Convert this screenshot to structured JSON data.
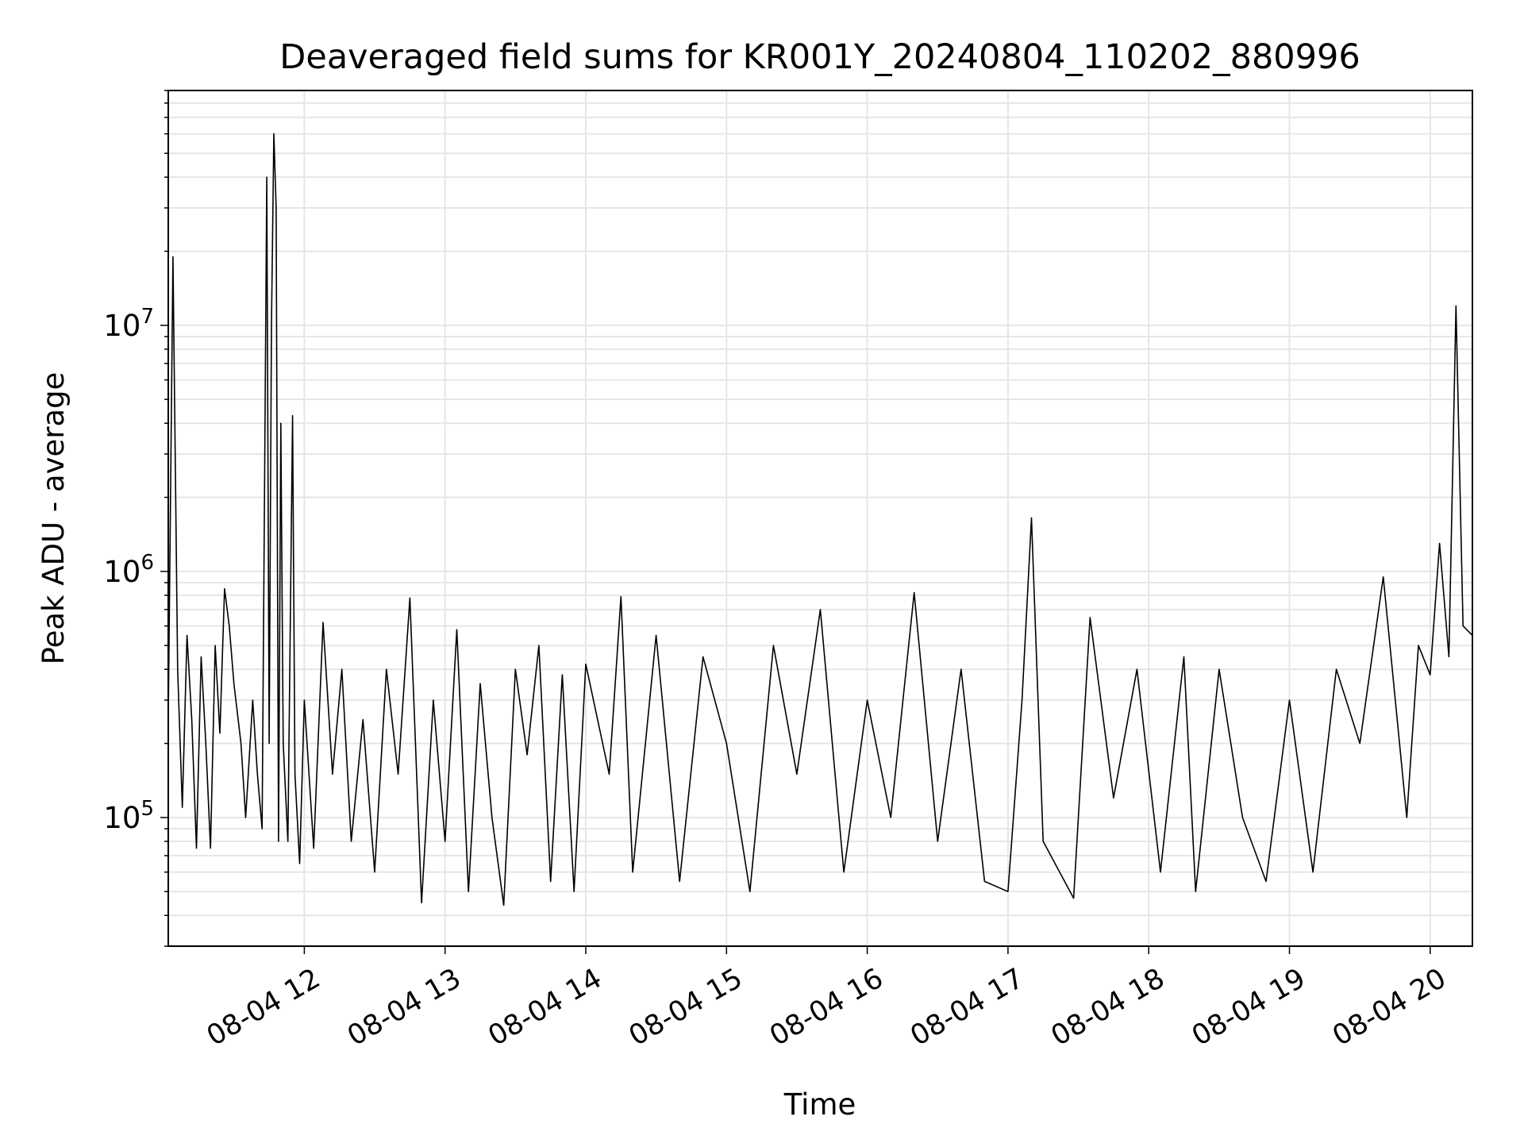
{
  "chart_data": {
    "type": "line",
    "title": "Deaveraged field sums for KR001Y_20240804_110202_880996",
    "xlabel": "Time",
    "ylabel": "Peak ADU - average",
    "y_scale": "log",
    "grid": true,
    "line_color": "#000000",
    "grid_color": "#e6e6e6",
    "xlim": [
      "2024-08-04 11:02",
      "2024-08-04 20:18"
    ],
    "ylim": [
      30000,
      90000000
    ],
    "x_ticks": [
      {
        "label": "08-04 12",
        "time": "2024-08-04 12:00"
      },
      {
        "label": "08-04 13",
        "time": "2024-08-04 13:00"
      },
      {
        "label": "08-04 14",
        "time": "2024-08-04 14:00"
      },
      {
        "label": "08-04 15",
        "time": "2024-08-04 15:00"
      },
      {
        "label": "08-04 16",
        "time": "2024-08-04 16:00"
      },
      {
        "label": "08-04 17",
        "time": "2024-08-04 17:00"
      },
      {
        "label": "08-04 18",
        "time": "2024-08-04 18:00"
      },
      {
        "label": "08-04 19",
        "time": "2024-08-04 19:00"
      },
      {
        "label": "08-04 20",
        "time": "2024-08-04 20:00"
      }
    ],
    "y_ticks": [
      {
        "base": "10",
        "exp": "5",
        "value": 100000
      },
      {
        "base": "10",
        "exp": "6",
        "value": 1000000
      },
      {
        "base": "10",
        "exp": "7",
        "value": 10000000
      }
    ],
    "series": [
      {
        "points": [
          [
            "2024-08-04 11:02",
            250000
          ],
          [
            "2024-08-04 11:04",
            19000000
          ],
          [
            "2024-08-04 11:06",
            400000
          ],
          [
            "2024-08-04 11:08",
            110000
          ],
          [
            "2024-08-04 11:10",
            550000
          ],
          [
            "2024-08-04 11:12",
            250000
          ],
          [
            "2024-08-04 11:14",
            75000
          ],
          [
            "2024-08-04 11:16",
            450000
          ],
          [
            "2024-08-04 11:18",
            200000
          ],
          [
            "2024-08-04 11:20",
            75000
          ],
          [
            "2024-08-04 11:22",
            500000
          ],
          [
            "2024-08-04 11:24",
            220000
          ],
          [
            "2024-08-04 11:26",
            850000
          ],
          [
            "2024-08-04 11:28",
            600000
          ],
          [
            "2024-08-04 11:30",
            350000
          ],
          [
            "2024-08-04 11:33",
            200000
          ],
          [
            "2024-08-04 11:35",
            100000
          ],
          [
            "2024-08-04 11:38",
            300000
          ],
          [
            "2024-08-04 11:40",
            150000
          ],
          [
            "2024-08-04 11:42",
            90000
          ],
          [
            "2024-08-04 11:44",
            40000000
          ],
          [
            "2024-08-04 11:45",
            200000
          ],
          [
            "2024-08-04 11:46",
            10000000
          ],
          [
            "2024-08-04 11:47",
            60000000
          ],
          [
            "2024-08-04 11:48",
            30000000
          ],
          [
            "2024-08-04 11:49",
            80000
          ],
          [
            "2024-08-04 11:50",
            4000000
          ],
          [
            "2024-08-04 11:51",
            200000
          ],
          [
            "2024-08-04 11:53",
            80000
          ],
          [
            "2024-08-04 11:55",
            4300000
          ],
          [
            "2024-08-04 11:56",
            150000
          ],
          [
            "2024-08-04 11:58",
            65000
          ],
          [
            "2024-08-04 12:00",
            300000
          ],
          [
            "2024-08-04 12:04",
            75000
          ],
          [
            "2024-08-04 12:08",
            620000
          ],
          [
            "2024-08-04 12:12",
            150000
          ],
          [
            "2024-08-04 12:16",
            400000
          ],
          [
            "2024-08-04 12:20",
            80000
          ],
          [
            "2024-08-04 12:25",
            250000
          ],
          [
            "2024-08-04 12:30",
            60000
          ],
          [
            "2024-08-04 12:35",
            400000
          ],
          [
            "2024-08-04 12:40",
            150000
          ],
          [
            "2024-08-04 12:45",
            780000
          ],
          [
            "2024-08-04 12:50",
            45000
          ],
          [
            "2024-08-04 12:55",
            300000
          ],
          [
            "2024-08-04 13:00",
            80000
          ],
          [
            "2024-08-04 13:05",
            580000
          ],
          [
            "2024-08-04 13:10",
            50000
          ],
          [
            "2024-08-04 13:15",
            350000
          ],
          [
            "2024-08-04 13:20",
            100000
          ],
          [
            "2024-08-04 13:25",
            44000
          ],
          [
            "2024-08-04 13:30",
            400000
          ],
          [
            "2024-08-04 13:35",
            180000
          ],
          [
            "2024-08-04 13:40",
            500000
          ],
          [
            "2024-08-04 13:45",
            55000
          ],
          [
            "2024-08-04 13:50",
            380000
          ],
          [
            "2024-08-04 13:55",
            50000
          ],
          [
            "2024-08-04 14:00",
            420000
          ],
          [
            "2024-08-04 14:10",
            150000
          ],
          [
            "2024-08-04 14:15",
            790000
          ],
          [
            "2024-08-04 14:20",
            60000
          ],
          [
            "2024-08-04 14:30",
            550000
          ],
          [
            "2024-08-04 14:40",
            55000
          ],
          [
            "2024-08-04 14:50",
            450000
          ],
          [
            "2024-08-04 15:00",
            200000
          ],
          [
            "2024-08-04 15:10",
            50000
          ],
          [
            "2024-08-04 15:20",
            500000
          ],
          [
            "2024-08-04 15:30",
            150000
          ],
          [
            "2024-08-04 15:40",
            700000
          ],
          [
            "2024-08-04 15:50",
            60000
          ],
          [
            "2024-08-04 16:00",
            300000
          ],
          [
            "2024-08-04 16:10",
            100000
          ],
          [
            "2024-08-04 16:20",
            820000
          ],
          [
            "2024-08-04 16:30",
            80000
          ],
          [
            "2024-08-04 16:40",
            400000
          ],
          [
            "2024-08-04 16:50",
            55000
          ],
          [
            "2024-08-04 17:00",
            50000
          ],
          [
            "2024-08-04 17:06",
            300000
          ],
          [
            "2024-08-04 17:10",
            1650000
          ],
          [
            "2024-08-04 17:15",
            80000
          ],
          [
            "2024-08-04 17:28",
            47000
          ],
          [
            "2024-08-04 17:35",
            650000
          ],
          [
            "2024-08-04 17:45",
            120000
          ],
          [
            "2024-08-04 17:55",
            400000
          ],
          [
            "2024-08-04 18:05",
            60000
          ],
          [
            "2024-08-04 18:15",
            450000
          ],
          [
            "2024-08-04 18:20",
            50000
          ],
          [
            "2024-08-04 18:30",
            400000
          ],
          [
            "2024-08-04 18:40",
            100000
          ],
          [
            "2024-08-04 18:50",
            55000
          ],
          [
            "2024-08-04 19:00",
            300000
          ],
          [
            "2024-08-04 19:10",
            60000
          ],
          [
            "2024-08-04 19:20",
            400000
          ],
          [
            "2024-08-04 19:30",
            200000
          ],
          [
            "2024-08-04 19:40",
            950000
          ],
          [
            "2024-08-04 19:50",
            100000
          ],
          [
            "2024-08-04 19:55",
            500000
          ],
          [
            "2024-08-04 20:00",
            380000
          ],
          [
            "2024-08-04 20:04",
            1300000
          ],
          [
            "2024-08-04 20:08",
            450000
          ],
          [
            "2024-08-04 20:11",
            12000000
          ],
          [
            "2024-08-04 20:14",
            600000
          ],
          [
            "2024-08-04 20:18",
            550000
          ]
        ]
      }
    ]
  }
}
